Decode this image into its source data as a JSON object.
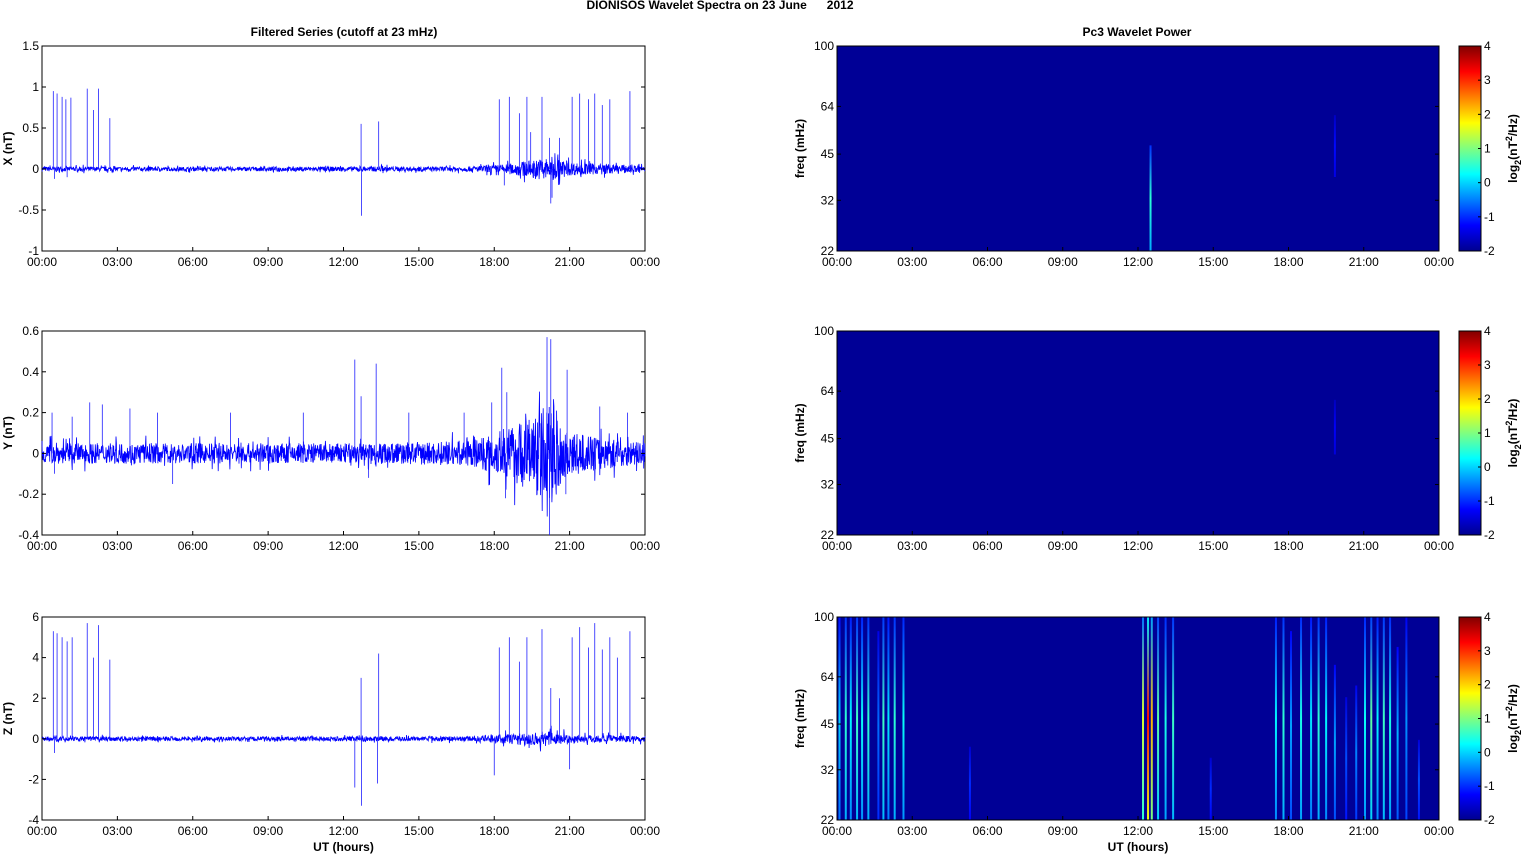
{
  "figure": {
    "suptitle": "DIONISOS Wavelet Spectra on 23 June      2012",
    "left_title": "Filtered Series (cutoff at 23 mHz)",
    "right_title": "Pc3 Wavelet Power",
    "xlabel": "UT (hours)"
  },
  "chart_data": [
    {
      "type": "line",
      "panel": "X",
      "title": "Filtered Series (cutoff at 23 mHz)",
      "xlabel": "",
      "ylabel": "X (nT)",
      "x_ticks": [
        "00:00",
        "03:00",
        "06:00",
        "09:00",
        "12:00",
        "15:00",
        "18:00",
        "21:00",
        "00:00"
      ],
      "y_ticks": [
        "-1",
        "-0.5",
        "0",
        "0.5",
        "1",
        "1.5"
      ],
      "ylim": [
        -1,
        1.5
      ],
      "xlim_hours": [
        0,
        24
      ],
      "noise_band": [
        {
          "t": 0,
          "amp": 0.03
        },
        {
          "t": 6,
          "amp": 0.025
        },
        {
          "t": 12,
          "amp": 0.03
        },
        {
          "t": 17,
          "amp": 0.03
        },
        {
          "t": 18.5,
          "amp": 0.06
        },
        {
          "t": 20.3,
          "amp": 0.15
        },
        {
          "t": 21,
          "amp": 0.08
        },
        {
          "t": 24,
          "amp": 0.04
        }
      ],
      "spikes": [
        {
          "t": 0.45,
          "v": 0.95
        },
        {
          "t": 0.6,
          "v": 0.92
        },
        {
          "t": 0.8,
          "v": 0.88
        },
        {
          "t": 0.95,
          "v": 0.85
        },
        {
          "t": 1.15,
          "v": 0.87
        },
        {
          "t": 1.8,
          "v": 0.98
        },
        {
          "t": 2.05,
          "v": 0.72
        },
        {
          "t": 2.25,
          "v": 0.98
        },
        {
          "t": 2.7,
          "v": 0.62
        },
        {
          "t": 12.7,
          "v": 0.55
        },
        {
          "t": 12.72,
          "v": -0.57
        },
        {
          "t": 13.4,
          "v": 0.58
        },
        {
          "t": 18.2,
          "v": 0.85
        },
        {
          "t": 18.6,
          "v": 0.88
        },
        {
          "t": 19.0,
          "v": 0.68
        },
        {
          "t": 19.3,
          "v": 0.88
        },
        {
          "t": 19.45,
          "v": 0.45
        },
        {
          "t": 19.9,
          "v": 0.88
        },
        {
          "t": 20.2,
          "v": 0.38
        },
        {
          "t": 20.25,
          "v": -0.42
        },
        {
          "t": 20.6,
          "v": 0.38
        },
        {
          "t": 21.1,
          "v": 0.88
        },
        {
          "t": 21.4,
          "v": 0.92
        },
        {
          "t": 21.75,
          "v": 0.85
        },
        {
          "t": 22.0,
          "v": 0.92
        },
        {
          "t": 22.3,
          "v": 0.78
        },
        {
          "t": 22.6,
          "v": 0.85
        },
        {
          "t": 23.4,
          "v": 0.95
        },
        {
          "t": 0.5,
          "v": -0.12
        },
        {
          "t": 1.0,
          "v": -0.1
        },
        {
          "t": 18.4,
          "v": -0.2
        },
        {
          "t": 20.3,
          "v": -0.35
        }
      ]
    },
    {
      "type": "line",
      "panel": "Y",
      "title": "",
      "xlabel": "",
      "ylabel": "Y (nT)",
      "x_ticks": [
        "00:00",
        "03:00",
        "06:00",
        "09:00",
        "12:00",
        "15:00",
        "18:00",
        "21:00",
        "00:00"
      ],
      "y_ticks": [
        "-0.4",
        "-0.2",
        "0",
        "0.2",
        "0.4",
        "0.6"
      ],
      "ylim": [
        -0.4,
        0.6
      ],
      "xlim_hours": [
        0,
        24
      ],
      "noise_band": [
        {
          "t": 0,
          "amp": 0.05
        },
        {
          "t": 6,
          "amp": 0.05
        },
        {
          "t": 12,
          "amp": 0.05
        },
        {
          "t": 17,
          "amp": 0.06
        },
        {
          "t": 18.5,
          "amp": 0.12
        },
        {
          "t": 20.3,
          "amp": 0.25
        },
        {
          "t": 21,
          "amp": 0.1
        },
        {
          "t": 24,
          "amp": 0.05
        }
      ],
      "spikes": [
        {
          "t": 0.4,
          "v": 0.2
        },
        {
          "t": 1.2,
          "v": 0.18
        },
        {
          "t": 1.9,
          "v": 0.25
        },
        {
          "t": 2.4,
          "v": 0.24
        },
        {
          "t": 3.5,
          "v": 0.22
        },
        {
          "t": 4.6,
          "v": 0.2
        },
        {
          "t": 7.5,
          "v": 0.2
        },
        {
          "t": 10.4,
          "v": 0.2
        },
        {
          "t": 12.45,
          "v": 0.46
        },
        {
          "t": 12.7,
          "v": 0.28
        },
        {
          "t": 13.3,
          "v": 0.44
        },
        {
          "t": 14.6,
          "v": 0.2
        },
        {
          "t": 16.8,
          "v": 0.2
        },
        {
          "t": 17.9,
          "v": 0.25
        },
        {
          "t": 18.3,
          "v": 0.42
        },
        {
          "t": 18.5,
          "v": 0.3
        },
        {
          "t": 18.45,
          "v": -0.22
        },
        {
          "t": 20.1,
          "v": 0.57
        },
        {
          "t": 20.25,
          "v": 0.56
        },
        {
          "t": 20.2,
          "v": -0.4
        },
        {
          "t": 20.9,
          "v": 0.41
        },
        {
          "t": 20.85,
          "v": -0.2
        },
        {
          "t": 22.2,
          "v": 0.23
        },
        {
          "t": 23.3,
          "v": 0.2
        },
        {
          "t": 0.5,
          "v": -0.1
        },
        {
          "t": 5.2,
          "v": -0.15
        },
        {
          "t": 13.0,
          "v": -0.12
        }
      ]
    },
    {
      "type": "line",
      "panel": "Z",
      "title": "",
      "xlabel": "UT (hours)",
      "ylabel": "Z (nT)",
      "x_ticks": [
        "00:00",
        "03:00",
        "06:00",
        "09:00",
        "12:00",
        "15:00",
        "18:00",
        "21:00",
        "00:00"
      ],
      "y_ticks": [
        "-4",
        "-2",
        "0",
        "2",
        "4",
        "6"
      ],
      "ylim": [
        -4,
        6
      ],
      "xlim_hours": [
        0,
        24
      ],
      "noise_band": [
        {
          "t": 0,
          "amp": 0.12
        },
        {
          "t": 6,
          "amp": 0.1
        },
        {
          "t": 12,
          "amp": 0.12
        },
        {
          "t": 17,
          "amp": 0.12
        },
        {
          "t": 18.5,
          "amp": 0.25
        },
        {
          "t": 20.3,
          "amp": 0.4
        },
        {
          "t": 21,
          "amp": 0.2
        },
        {
          "t": 24,
          "amp": 0.15
        }
      ],
      "spikes": [
        {
          "t": 0.45,
          "v": 5.3
        },
        {
          "t": 0.6,
          "v": 5.2
        },
        {
          "t": 0.8,
          "v": 5.0
        },
        {
          "t": 1.0,
          "v": 4.8
        },
        {
          "t": 1.2,
          "v": 5.0
        },
        {
          "t": 1.8,
          "v": 5.7
        },
        {
          "t": 2.05,
          "v": 4.0
        },
        {
          "t": 2.25,
          "v": 5.6
        },
        {
          "t": 2.7,
          "v": 3.9
        },
        {
          "t": 0.5,
          "v": -0.7
        },
        {
          "t": 12.7,
          "v": 3.0
        },
        {
          "t": 12.72,
          "v": -3.3
        },
        {
          "t": 12.45,
          "v": -2.4
        },
        {
          "t": 13.4,
          "v": 4.2
        },
        {
          "t": 13.35,
          "v": -2.2
        },
        {
          "t": 18.2,
          "v": 4.5
        },
        {
          "t": 18.6,
          "v": 5.0
        },
        {
          "t": 18.0,
          "v": -1.8
        },
        {
          "t": 19.0,
          "v": 3.8
        },
        {
          "t": 19.3,
          "v": 5.0
        },
        {
          "t": 19.9,
          "v": 5.4
        },
        {
          "t": 20.25,
          "v": 2.5
        },
        {
          "t": 20.6,
          "v": 2.0
        },
        {
          "t": 21.1,
          "v": 5.0
        },
        {
          "t": 21.4,
          "v": 5.5
        },
        {
          "t": 21.75,
          "v": 4.5
        },
        {
          "t": 22.0,
          "v": 5.7
        },
        {
          "t": 22.3,
          "v": 4.4
        },
        {
          "t": 22.6,
          "v": 5.0
        },
        {
          "t": 22.9,
          "v": 4.0
        },
        {
          "t": 23.4,
          "v": 5.3
        },
        {
          "t": 21.0,
          "v": -1.5
        }
      ]
    },
    {
      "type": "heatmap",
      "panel": "X",
      "title": "Pc3 Wavelet Power",
      "xlabel": "",
      "ylabel": "freq (mHz)",
      "colorbar_label": "log2(nT2/Hz)",
      "x_ticks": [
        "00:00",
        "03:00",
        "06:00",
        "09:00",
        "12:00",
        "15:00",
        "18:00",
        "21:00",
        "00:00"
      ],
      "y_ticks": [
        "22",
        "32",
        "45",
        "64",
        "100"
      ],
      "colorbar_ticks": [
        "-2",
        "-1",
        "0",
        "1",
        "2",
        "3",
        "4"
      ],
      "clim": [
        -2,
        4
      ],
      "freq_range_mhz": [
        22,
        100
      ],
      "background_level": -1.95,
      "streaks": [
        {
          "t": 12.5,
          "f_lo": 22,
          "f_hi": 48,
          "level": 0.5
        },
        {
          "t": 19.85,
          "f_lo": 38,
          "f_hi": 60,
          "level": -1.2
        }
      ]
    },
    {
      "type": "heatmap",
      "panel": "Y",
      "title": "",
      "xlabel": "",
      "ylabel": "freq (mHz)",
      "colorbar_label": "log2(nT2/Hz)",
      "x_ticks": [
        "00:00",
        "03:00",
        "06:00",
        "09:00",
        "12:00",
        "15:00",
        "18:00",
        "21:00",
        "00:00"
      ],
      "y_ticks": [
        "22",
        "32",
        "45",
        "64",
        "100"
      ],
      "colorbar_ticks": [
        "-2",
        "-1",
        "0",
        "1",
        "2",
        "3",
        "4"
      ],
      "clim": [
        -2,
        4
      ],
      "freq_range_mhz": [
        22,
        100
      ],
      "background_level": -1.95,
      "streaks": [
        {
          "t": 19.85,
          "f_lo": 40,
          "f_hi": 60,
          "level": -1.3
        }
      ]
    },
    {
      "type": "heatmap",
      "panel": "Z",
      "title": "",
      "xlabel": "UT (hours)",
      "ylabel": "freq (mHz)",
      "colorbar_label": "log2(nT2/Hz)",
      "x_ticks": [
        "00:00",
        "03:00",
        "06:00",
        "09:00",
        "12:00",
        "15:00",
        "18:00",
        "21:00",
        "00:00"
      ],
      "y_ticks": [
        "22",
        "32",
        "45",
        "64",
        "100"
      ],
      "colorbar_ticks": [
        "-2",
        "-1",
        "0",
        "1",
        "2",
        "3",
        "4"
      ],
      "clim": [
        -2,
        4
      ],
      "freq_range_mhz": [
        22,
        100
      ],
      "background_level": -1.95,
      "streaks": [
        {
          "t": 0.1,
          "f_lo": 22,
          "f_hi": 100,
          "level": 0.0
        },
        {
          "t": 0.35,
          "f_lo": 22,
          "f_hi": 100,
          "level": 0.5
        },
        {
          "t": 0.55,
          "f_lo": 22,
          "f_hi": 100,
          "level": 0.2
        },
        {
          "t": 0.8,
          "f_lo": 22,
          "f_hi": 100,
          "level": 0.6
        },
        {
          "t": 1.0,
          "f_lo": 22,
          "f_hi": 100,
          "level": 0.3
        },
        {
          "t": 1.25,
          "f_lo": 22,
          "f_hi": 100,
          "level": 0.5
        },
        {
          "t": 1.65,
          "f_lo": 22,
          "f_hi": 90,
          "level": -0.6
        },
        {
          "t": 1.85,
          "f_lo": 22,
          "f_hi": 100,
          "level": 0.6
        },
        {
          "t": 2.05,
          "f_lo": 22,
          "f_hi": 100,
          "level": 0.1
        },
        {
          "t": 2.3,
          "f_lo": 22,
          "f_hi": 100,
          "level": 0.5
        },
        {
          "t": 2.65,
          "f_lo": 22,
          "f_hi": 100,
          "level": 0.3
        },
        {
          "t": 5.3,
          "f_lo": 22,
          "f_hi": 38,
          "level": -1.0
        },
        {
          "t": 12.2,
          "f_lo": 22,
          "f_hi": 100,
          "level": 1.5
        },
        {
          "t": 12.4,
          "f_lo": 22,
          "f_hi": 100,
          "level": 3.2
        },
        {
          "t": 12.55,
          "f_lo": 22,
          "f_hi": 100,
          "level": 2.2
        },
        {
          "t": 12.8,
          "f_lo": 22,
          "f_hi": 100,
          "level": 0.8
        },
        {
          "t": 13.1,
          "f_lo": 22,
          "f_hi": 100,
          "level": 0.4
        },
        {
          "t": 13.4,
          "f_lo": 22,
          "f_hi": 100,
          "level": 0.6
        },
        {
          "t": 14.9,
          "f_lo": 22,
          "f_hi": 35,
          "level": -1.0
        },
        {
          "t": 17.5,
          "f_lo": 22,
          "f_hi": 100,
          "level": 0.2
        },
        {
          "t": 17.8,
          "f_lo": 22,
          "f_hi": 100,
          "level": 0.5
        },
        {
          "t": 18.1,
          "f_lo": 22,
          "f_hi": 90,
          "level": -0.3
        },
        {
          "t": 18.5,
          "f_lo": 22,
          "f_hi": 100,
          "level": 0.4
        },
        {
          "t": 18.9,
          "f_lo": 22,
          "f_hi": 100,
          "level": 0.1
        },
        {
          "t": 19.2,
          "f_lo": 22,
          "f_hi": 100,
          "level": 0.5
        },
        {
          "t": 19.5,
          "f_lo": 22,
          "f_hi": 100,
          "level": 0.2
        },
        {
          "t": 19.85,
          "f_lo": 22,
          "f_hi": 70,
          "level": -0.3
        },
        {
          "t": 20.3,
          "f_lo": 22,
          "f_hi": 55,
          "level": -0.8
        },
        {
          "t": 20.7,
          "f_lo": 22,
          "f_hi": 60,
          "level": -0.5
        },
        {
          "t": 21.05,
          "f_lo": 22,
          "f_hi": 100,
          "level": 0.3
        },
        {
          "t": 21.3,
          "f_lo": 22,
          "f_hi": 100,
          "level": 0.8
        },
        {
          "t": 21.55,
          "f_lo": 22,
          "f_hi": 100,
          "level": 0.2
        },
        {
          "t": 21.8,
          "f_lo": 22,
          "f_hi": 100,
          "level": 0.6
        },
        {
          "t": 22.05,
          "f_lo": 22,
          "f_hi": 100,
          "level": 0.4
        },
        {
          "t": 22.35,
          "f_lo": 22,
          "f_hi": 80,
          "level": -0.2
        },
        {
          "t": 22.7,
          "f_lo": 22,
          "f_hi": 100,
          "level": -0.4
        },
        {
          "t": 23.2,
          "f_lo": 22,
          "f_hi": 40,
          "level": -0.8
        }
      ]
    }
  ]
}
